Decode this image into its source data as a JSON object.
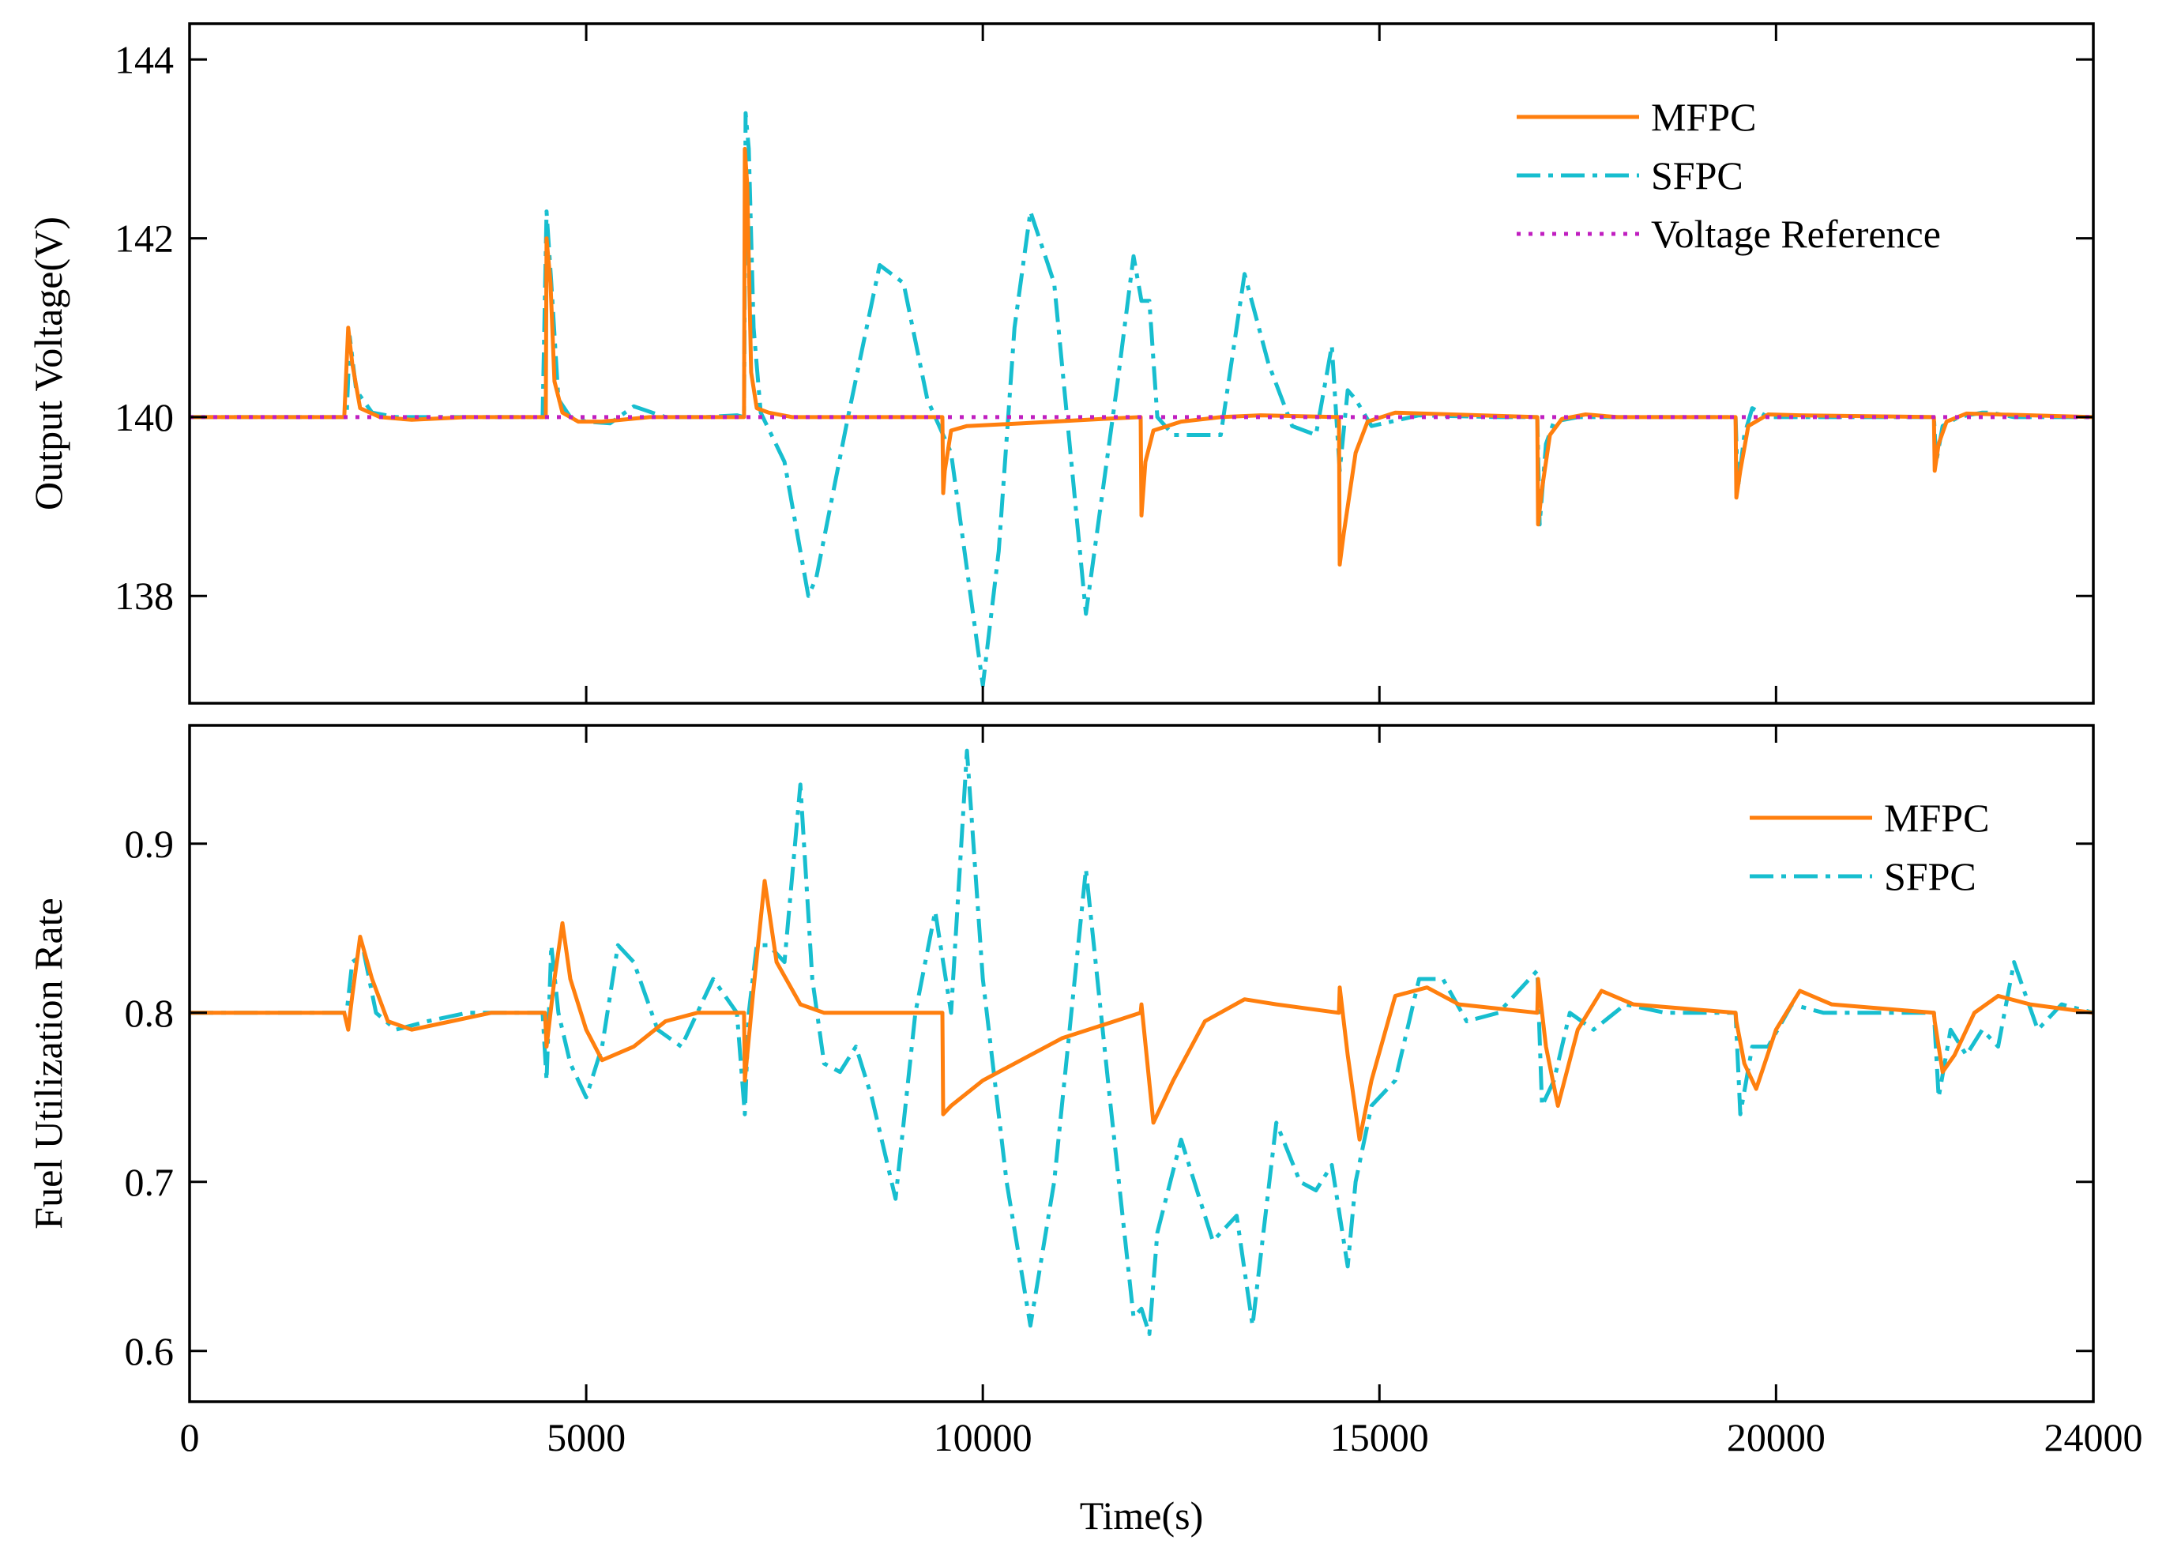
{
  "colors": {
    "mfpc": "#ff7f0e",
    "sfpc": "#17becf",
    "reference": "#c01fc0"
  },
  "chart_data": [
    {
      "type": "line",
      "ylabel": "Output Voltage(V)",
      "xlabel": "",
      "xlim": [
        0,
        24000
      ],
      "ylim": [
        136.8,
        144.4
      ],
      "yticks": [
        138,
        140,
        142,
        144
      ],
      "ytick_labels": [
        "138",
        "140",
        "142",
        "144"
      ],
      "xticks": [
        0,
        5000,
        10000,
        15000,
        20000,
        24000
      ],
      "legend": {
        "position": "top-right",
        "items": [
          "MFPC",
          "SFPC",
          "Voltage Reference"
        ]
      },
      "series": [
        {
          "name": "MFPC",
          "style": "solid",
          "x": [
            0,
            1950,
            2000,
            2050,
            2150,
            2400,
            2800,
            3500,
            4400,
            4490,
            4500,
            4550,
            4600,
            4700,
            4900,
            5200,
            5800,
            6500,
            6990,
            7000,
            7030,
            7080,
            7150,
            7300,
            7600,
            8500,
            9490,
            9500,
            9520,
            9600,
            9800,
            10500,
            11500,
            11990,
            12000,
            12050,
            12150,
            12500,
            13000,
            13500,
            14490,
            14500,
            14550,
            14700,
            14850,
            15200,
            16990,
            17000,
            17050,
            17150,
            17300,
            17600,
            18000,
            19490,
            19500,
            19550,
            19650,
            19900,
            20300,
            21990,
            22000,
            22050,
            22150,
            22400,
            22800,
            24000
          ],
          "y": [
            140,
            140,
            141,
            140.6,
            140.1,
            140,
            139.97,
            140,
            140,
            140,
            142,
            141.5,
            140.4,
            140.05,
            139.95,
            139.95,
            140,
            140,
            140,
            143,
            142.6,
            140.5,
            140.1,
            140.05,
            140,
            140,
            140,
            139.15,
            139.4,
            139.85,
            139.9,
            139.93,
            139.98,
            140,
            138.9,
            139.5,
            139.85,
            139.95,
            140,
            140.02,
            140,
            138.35,
            138.7,
            139.6,
            139.95,
            140.05,
            140,
            138.8,
            139.2,
            139.8,
            139.98,
            140.03,
            140,
            140,
            139.1,
            139.4,
            139.9,
            140.03,
            140.02,
            140,
            139.4,
            139.7,
            139.95,
            140.04,
            140.03,
            140
          ]
        },
        {
          "name": "SFPC",
          "style": "dashdot",
          "x": [
            0,
            1980,
            2020,
            2100,
            2300,
            2600,
            3500,
            4450,
            4500,
            4560,
            4650,
            4800,
            5000,
            5300,
            5600,
            6000,
            6500,
            6900,
            6990,
            7010,
            7050,
            7110,
            7200,
            7500,
            7800,
            7900,
            8300,
            8700,
            9000,
            9300,
            9600,
            10000,
            10200,
            10400,
            10600,
            10900,
            11300,
            11700,
            11900,
            12000,
            12100,
            12200,
            12400,
            13000,
            13300,
            13600,
            13900,
            14200,
            14400,
            14500,
            14600,
            14700,
            14900,
            15500,
            16500,
            16990,
            17020,
            17100,
            17200,
            17500,
            18500,
            19490,
            19520,
            19600,
            19700,
            19900,
            21000,
            21990,
            22020,
            22100,
            22300,
            22600,
            22700,
            23000,
            24000
          ],
          "y": [
            140,
            140,
            140.9,
            140.3,
            140.05,
            140,
            140,
            140,
            142.3,
            141.5,
            140.2,
            140,
            139.95,
            139.93,
            140.12,
            140,
            140,
            140.02,
            140,
            143.4,
            143,
            141,
            140.05,
            139.5,
            138,
            138.2,
            140,
            141.7,
            141.5,
            140.2,
            139.6,
            137,
            138.5,
            141,
            142.3,
            141.5,
            137.8,
            140.4,
            141.8,
            141.3,
            141.3,
            140,
            139.8,
            139.8,
            141.6,
            140.6,
            139.9,
            139.8,
            140.8,
            139.4,
            140.3,
            140.2,
            139.9,
            140.02,
            140,
            140,
            138.8,
            139.7,
            139.95,
            140,
            140,
            140,
            139.2,
            139.8,
            140.1,
            140,
            140,
            140,
            139.5,
            139.9,
            140,
            140.05,
            140.05,
            140,
            140
          ]
        },
        {
          "name": "Voltage Reference",
          "style": "dotted",
          "x": [
            0,
            24000
          ],
          "y": [
            140,
            140
          ]
        }
      ]
    },
    {
      "type": "line",
      "ylabel": "Fuel Utilization Rate",
      "xlabel": "Time(s)",
      "xlim": [
        0,
        24000
      ],
      "ylim": [
        0.57,
        0.97
      ],
      "yticks": [
        0.6,
        0.7,
        0.8,
        0.9
      ],
      "ytick_labels": [
        "0.6",
        "0.7",
        "0.8",
        "0.9"
      ],
      "xticks": [
        0,
        5000,
        10000,
        15000,
        20000,
        24000
      ],
      "xtick_labels": [
        "0",
        "5000",
        "10000",
        "15000",
        "20000",
        "24000"
      ],
      "legend": {
        "position": "top-right",
        "items": [
          "MFPC",
          "SFPC"
        ]
      },
      "series": [
        {
          "name": "MFPC",
          "style": "solid",
          "x": [
            0,
            1950,
            2000,
            2050,
            2150,
            2300,
            2500,
            2800,
            3300,
            3800,
            4400,
            4480,
            4500,
            4600,
            4700,
            4800,
            5000,
            5200,
            5600,
            6000,
            6400,
            6990,
            7000,
            7100,
            7250,
            7400,
            7700,
            8000,
            9000,
            9490,
            9500,
            9600,
            10000,
            11000,
            11990,
            12000,
            12150,
            12400,
            12800,
            13300,
            13700,
            14490,
            14500,
            14600,
            14750,
            14900,
            15200,
            15600,
            16000,
            16990,
            17000,
            17100,
            17250,
            17500,
            17800,
            18200,
            19490,
            19500,
            19600,
            19750,
            20000,
            20300,
            20700,
            21990,
            22000,
            22100,
            22250,
            22500,
            22800,
            23200,
            24000
          ],
          "y": [
            0.8,
            0.8,
            0.79,
            0.81,
            0.845,
            0.82,
            0.795,
            0.79,
            0.795,
            0.8,
            0.8,
            0.8,
            0.78,
            0.82,
            0.853,
            0.82,
            0.79,
            0.772,
            0.78,
            0.795,
            0.8,
            0.8,
            0.76,
            0.81,
            0.878,
            0.83,
            0.805,
            0.8,
            0.8,
            0.8,
            0.74,
            0.745,
            0.76,
            0.785,
            0.8,
            0.805,
            0.735,
            0.76,
            0.795,
            0.808,
            0.805,
            0.8,
            0.815,
            0.775,
            0.725,
            0.76,
            0.81,
            0.815,
            0.805,
            0.8,
            0.82,
            0.78,
            0.745,
            0.79,
            0.813,
            0.805,
            0.8,
            0.795,
            0.77,
            0.755,
            0.79,
            0.813,
            0.805,
            0.8,
            0.795,
            0.765,
            0.775,
            0.8,
            0.81,
            0.805,
            0.8
          ]
        },
        {
          "name": "SFPC",
          "style": "dashdot",
          "x": [
            0,
            1980,
            2050,
            2200,
            2350,
            2600,
            3000,
            3500,
            4450,
            4500,
            4560,
            4650,
            4800,
            5000,
            5200,
            5400,
            5600,
            5900,
            6200,
            6600,
            6900,
            7000,
            7050,
            7150,
            7300,
            7500,
            7700,
            7850,
            8000,
            8200,
            8400,
            8600,
            8900,
            9150,
            9400,
            9600,
            9800,
            10000,
            10300,
            10600,
            10900,
            11300,
            11600,
            11900,
            12000,
            12100,
            12200,
            12500,
            12900,
            13200,
            13400,
            13700,
            14000,
            14200,
            14400,
            14600,
            14700,
            14900,
            15200,
            15500,
            15800,
            16100,
            16500,
            16990,
            17050,
            17200,
            17400,
            17700,
            18100,
            18600,
            19490,
            19550,
            19700,
            19900,
            20200,
            20600,
            21300,
            21990,
            22050,
            22200,
            22400,
            22600,
            22800,
            23000,
            23300,
            23600,
            24000
          ],
          "y": [
            0.8,
            0.8,
            0.83,
            0.835,
            0.8,
            0.79,
            0.795,
            0.8,
            0.8,
            0.76,
            0.84,
            0.8,
            0.77,
            0.75,
            0.78,
            0.84,
            0.83,
            0.79,
            0.78,
            0.82,
            0.8,
            0.74,
            0.8,
            0.84,
            0.84,
            0.83,
            0.935,
            0.82,
            0.77,
            0.765,
            0.78,
            0.75,
            0.69,
            0.8,
            0.86,
            0.8,
            0.955,
            0.82,
            0.7,
            0.615,
            0.7,
            0.885,
            0.75,
            0.62,
            0.625,
            0.61,
            0.67,
            0.725,
            0.665,
            0.68,
            0.615,
            0.735,
            0.7,
            0.695,
            0.71,
            0.65,
            0.7,
            0.745,
            0.76,
            0.82,
            0.82,
            0.795,
            0.8,
            0.825,
            0.745,
            0.76,
            0.8,
            0.79,
            0.805,
            0.8,
            0.8,
            0.74,
            0.78,
            0.78,
            0.805,
            0.8,
            0.8,
            0.8,
            0.75,
            0.79,
            0.775,
            0.79,
            0.78,
            0.83,
            0.79,
            0.805,
            0.8
          ]
        }
      ]
    }
  ]
}
